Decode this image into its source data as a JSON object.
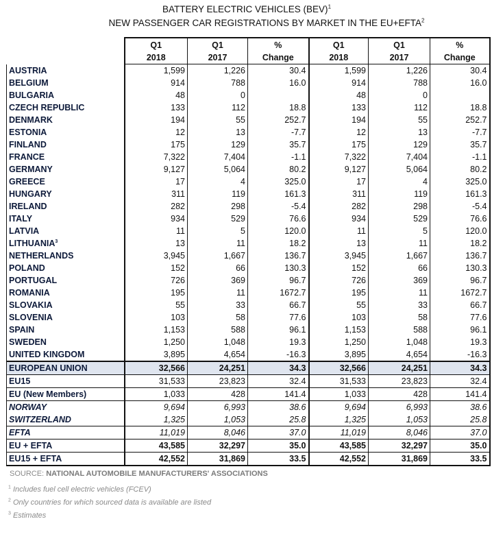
{
  "title": {
    "line1": "BATTERY ELECTRIC VEHICLES (BEV)",
    "line1_sup": "1",
    "line2": "NEW PASSENGER CAR REGISTRATIONS BY MARKET IN THE EU+EFTA",
    "line2_sup": "2"
  },
  "headers": [
    [
      "Q1",
      "2018"
    ],
    [
      "Q1",
      "2017"
    ],
    [
      "%",
      "Change"
    ],
    [
      "Q1",
      "2018"
    ],
    [
      "Q1",
      "2017"
    ],
    [
      "%",
      "Change"
    ]
  ],
  "countries": [
    {
      "name": "AUSTRIA",
      "v": [
        "1,599",
        "1,226",
        "30.4",
        "1,599",
        "1,226",
        "30.4"
      ]
    },
    {
      "name": "BELGIUM",
      "v": [
        "914",
        "788",
        "16.0",
        "914",
        "788",
        "16.0"
      ]
    },
    {
      "name": "BULGARIA",
      "v": [
        "48",
        "0",
        "",
        "48",
        "0",
        ""
      ]
    },
    {
      "name": "CZECH REPUBLIC",
      "v": [
        "133",
        "112",
        "18.8",
        "133",
        "112",
        "18.8"
      ]
    },
    {
      "name": "DENMARK",
      "v": [
        "194",
        "55",
        "252.7",
        "194",
        "55",
        "252.7"
      ]
    },
    {
      "name": "ESTONIA",
      "v": [
        "12",
        "13",
        "-7.7",
        "12",
        "13",
        "-7.7"
      ]
    },
    {
      "name": "FINLAND",
      "v": [
        "175",
        "129",
        "35.7",
        "175",
        "129",
        "35.7"
      ]
    },
    {
      "name": "FRANCE",
      "v": [
        "7,322",
        "7,404",
        "-1.1",
        "7,322",
        "7,404",
        "-1.1"
      ]
    },
    {
      "name": "GERMANY",
      "v": [
        "9,127",
        "5,064",
        "80.2",
        "9,127",
        "5,064",
        "80.2"
      ]
    },
    {
      "name": "GREECE",
      "v": [
        "17",
        "4",
        "325.0",
        "17",
        "4",
        "325.0"
      ]
    },
    {
      "name": "HUNGARY",
      "v": [
        "311",
        "119",
        "161.3",
        "311",
        "119",
        "161.3"
      ]
    },
    {
      "name": "IRELAND",
      "v": [
        "282",
        "298",
        "-5.4",
        "282",
        "298",
        "-5.4"
      ]
    },
    {
      "name": "ITALY",
      "v": [
        "934",
        "529",
        "76.6",
        "934",
        "529",
        "76.6"
      ]
    },
    {
      "name": "LATVIA",
      "v": [
        "11",
        "5",
        "120.0",
        "11",
        "5",
        "120.0"
      ]
    },
    {
      "name": "LITHUANIA",
      "sup": "3",
      "v": [
        "13",
        "11",
        "18.2",
        "13",
        "11",
        "18.2"
      ]
    },
    {
      "name": "NETHERLANDS",
      "v": [
        "3,945",
        "1,667",
        "136.7",
        "3,945",
        "1,667",
        "136.7"
      ]
    },
    {
      "name": "POLAND",
      "v": [
        "152",
        "66",
        "130.3",
        "152",
        "66",
        "130.3"
      ]
    },
    {
      "name": "PORTUGAL",
      "v": [
        "726",
        "369",
        "96.7",
        "726",
        "369",
        "96.7"
      ]
    },
    {
      "name": "ROMANIA",
      "v": [
        "195",
        "11",
        "1672.7",
        "195",
        "11",
        "1672.7"
      ]
    },
    {
      "name": "SLOVAKIA",
      "v": [
        "55",
        "33",
        "66.7",
        "55",
        "33",
        "66.7"
      ]
    },
    {
      "name": "SLOVENIA",
      "v": [
        "103",
        "58",
        "77.6",
        "103",
        "58",
        "77.6"
      ]
    },
    {
      "name": "SPAIN",
      "v": [
        "1,153",
        "588",
        "96.1",
        "1,153",
        "588",
        "96.1"
      ]
    },
    {
      "name": "SWEDEN",
      "v": [
        "1,250",
        "1,048",
        "19.3",
        "1,250",
        "1,048",
        "19.3"
      ]
    },
    {
      "name": "UNITED KINGDOM",
      "v": [
        "3,895",
        "4,654",
        "-16.3",
        "3,895",
        "4,654",
        "-16.3"
      ]
    }
  ],
  "totals": [
    {
      "name": "EUROPEAN UNION",
      "cls": "eu thicktop",
      "v": [
        "32,566",
        "24,251",
        "34.3",
        "32,566",
        "24,251",
        "34.3"
      ]
    },
    {
      "name": "EU15",
      "cls": "sep",
      "v": [
        "31,533",
        "23,823",
        "32.4",
        "31,533",
        "23,823",
        "32.4"
      ]
    },
    {
      "name": "EU (New Members)",
      "cls": "sep",
      "v": [
        "1,033",
        "428",
        "141.4",
        "1,033",
        "428",
        "141.4"
      ]
    },
    {
      "name": "NORWAY",
      "cls": "ital sep",
      "v": [
        "9,694",
        "6,993",
        "38.6",
        "9,694",
        "6,993",
        "38.6"
      ]
    },
    {
      "name": "SWITZERLAND",
      "cls": "ital",
      "v": [
        "1,325",
        "1,053",
        "25.8",
        "1,325",
        "1,053",
        "25.8"
      ]
    },
    {
      "name": "EFTA",
      "cls": "ital sep",
      "v": [
        "11,019",
        "8,046",
        "37.0",
        "11,019",
        "8,046",
        "37.0"
      ]
    },
    {
      "name": "EU + EFTA",
      "cls": "bold sep",
      "v": [
        "43,585",
        "32,297",
        "35.0",
        "43,585",
        "32,297",
        "35.0"
      ]
    },
    {
      "name": "EU15 + EFTA",
      "cls": "bold sep last",
      "v": [
        "42,552",
        "31,869",
        "33.5",
        "42,552",
        "31,869",
        "33.5"
      ]
    }
  ],
  "source": {
    "label": "SOURCE:",
    "text": "NATIONAL AUTOMOBILE MANUFACTURERS' ASSOCIATIONS"
  },
  "footnotes": [
    {
      "n": "1",
      "text": "Includes fuel cell electric vehicles (FCEV)"
    },
    {
      "n": "2",
      "text": "Only countries for which sourced data is available are listed"
    },
    {
      "n": "3",
      "text": "Estimates"
    }
  ]
}
